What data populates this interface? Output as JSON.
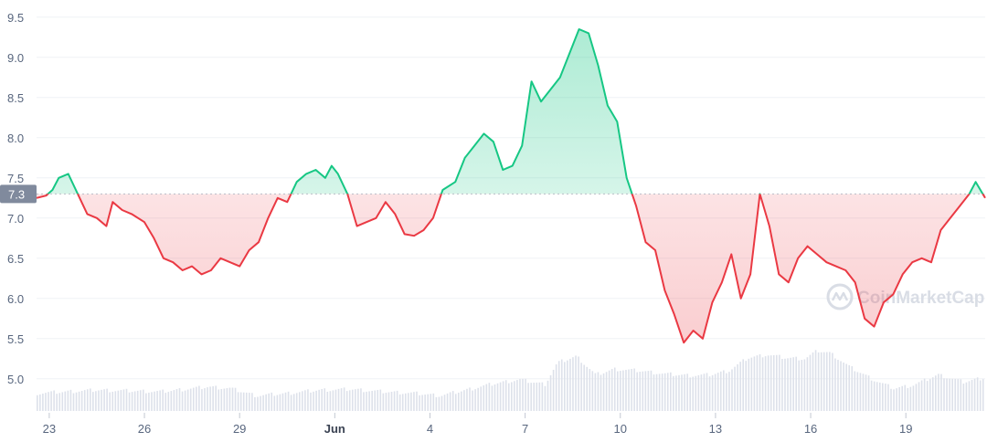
{
  "chart_data": {
    "type": "line",
    "baseline_value": 7.3,
    "current_value_label": "7.3",
    "ylim": [
      4.6,
      9.6
    ],
    "yticks": [
      5.0,
      5.5,
      6.0,
      6.5,
      7.0,
      7.5,
      8.0,
      8.5,
      9.0,
      9.5
    ],
    "ytick_labels": [
      "5.0",
      "5.5",
      "6.0",
      "6.5",
      "7.0",
      "7.5",
      "8.0",
      "8.5",
      "9.0",
      "9.5"
    ],
    "xlim": [
      22.6,
      52.5
    ],
    "xticks": [
      {
        "label": "23",
        "x": 23,
        "bold": false
      },
      {
        "label": "26",
        "x": 26,
        "bold": false
      },
      {
        "label": "29",
        "x": 29,
        "bold": false
      },
      {
        "label": "Jun",
        "x": 32,
        "bold": true
      },
      {
        "label": "4",
        "x": 35,
        "bold": false
      },
      {
        "label": "7",
        "x": 38,
        "bold": false
      },
      {
        "label": "10",
        "x": 41,
        "bold": false
      },
      {
        "label": "13",
        "x": 44,
        "bold": false
      },
      {
        "label": "16",
        "x": 47,
        "bold": false
      },
      {
        "label": "19",
        "x": 50,
        "bold": false
      }
    ],
    "price_series": {
      "x": [
        22.6,
        22.9,
        23.1,
        23.3,
        23.6,
        23.9,
        24.2,
        24.5,
        24.8,
        25.0,
        25.3,
        25.6,
        26.0,
        26.3,
        26.6,
        26.9,
        27.2,
        27.5,
        27.8,
        28.1,
        28.4,
        28.7,
        29.0,
        29.3,
        29.6,
        29.9,
        30.2,
        30.5,
        30.8,
        31.1,
        31.4,
        31.7,
        31.9,
        32.1,
        32.4,
        32.7,
        33.0,
        33.3,
        33.6,
        33.9,
        34.2,
        34.5,
        34.8,
        35.1,
        35.4,
        35.8,
        36.1,
        36.4,
        36.7,
        37.0,
        37.3,
        37.6,
        37.9,
        38.2,
        38.5,
        38.8,
        39.1,
        39.4,
        39.7,
        40.0,
        40.3,
        40.6,
        40.9,
        41.2,
        41.5,
        41.8,
        42.1,
        42.4,
        42.7,
        43.0,
        43.3,
        43.6,
        43.9,
        44.2,
        44.5,
        44.8,
        45.1,
        45.4,
        45.7,
        46.0,
        46.3,
        46.6,
        46.9,
        47.2,
        47.5,
        47.8,
        48.1,
        48.4,
        48.7,
        49.0,
        49.3,
        49.6,
        49.9,
        50.2,
        50.5,
        50.8,
        51.1,
        51.4,
        51.7,
        52.0,
        52.2,
        52.5
      ],
      "y": [
        7.25,
        7.28,
        7.35,
        7.5,
        7.55,
        7.3,
        7.05,
        7.0,
        6.9,
        7.2,
        7.1,
        7.05,
        6.95,
        6.75,
        6.5,
        6.45,
        6.35,
        6.4,
        6.3,
        6.35,
        6.5,
        6.45,
        6.4,
        6.6,
        6.7,
        7.0,
        7.25,
        7.2,
        7.45,
        7.55,
        7.6,
        7.5,
        7.65,
        7.55,
        7.3,
        6.9,
        6.95,
        7.0,
        7.2,
        7.05,
        6.8,
        6.78,
        6.85,
        7.0,
        7.35,
        7.45,
        7.75,
        7.9,
        8.05,
        7.95,
        7.6,
        7.65,
        7.9,
        8.7,
        8.45,
        8.6,
        8.75,
        9.05,
        9.35,
        9.3,
        8.9,
        8.4,
        8.2,
        7.5,
        7.15,
        6.7,
        6.6,
        6.1,
        5.8,
        5.45,
        5.6,
        5.5,
        5.95,
        6.2,
        6.55,
        6.0,
        6.3,
        7.3,
        6.9,
        6.3,
        6.2,
        6.5,
        6.65,
        6.55,
        6.45,
        6.4,
        6.35,
        6.2,
        5.75,
        5.65,
        5.95,
        6.05,
        6.3,
        6.45,
        6.5,
        6.45,
        6.85,
        7.0,
        7.15,
        7.3,
        7.45,
        7.25
      ]
    },
    "volume_series": {
      "x": [
        22.6,
        23.5,
        24.5,
        25.5,
        26.5,
        27.5,
        28.0,
        28.7,
        29.5,
        30.5,
        31.5,
        32.5,
        33.5,
        34.5,
        35.3,
        36.0,
        37.0,
        37.8,
        38.6,
        39.0,
        39.6,
        40.2,
        40.8,
        41.6,
        42.4,
        43.2,
        43.8,
        44.4,
        45.0,
        45.6,
        46.2,
        46.8,
        47.2,
        47.6,
        48.2,
        49.0,
        49.6,
        50.2,
        51.0,
        51.8,
        52.5
      ],
      "y": [
        4.82,
        4.84,
        4.86,
        4.85,
        4.84,
        4.88,
        4.9,
        4.88,
        4.79,
        4.82,
        4.86,
        4.87,
        4.84,
        4.82,
        4.79,
        4.85,
        4.94,
        4.99,
        4.93,
        5.2,
        5.28,
        5.05,
        5.12,
        5.1,
        5.06,
        5.04,
        5.05,
        5.1,
        5.26,
        5.3,
        5.26,
        5.25,
        5.35,
        5.32,
        5.15,
        4.98,
        4.88,
        4.92,
        5.05,
        4.96,
        5.02
      ]
    }
  },
  "colors": {
    "up_line": "#16c784",
    "down_line": "#ea3943",
    "up_fill": "#16c784",
    "down_fill": "#ea3943"
  },
  "watermark": {
    "text": "CoinMarketCap",
    "icon": "coinmarketcap-logo-icon"
  }
}
